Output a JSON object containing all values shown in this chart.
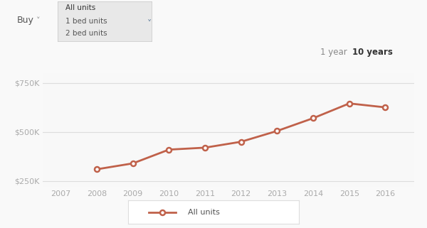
{
  "years": [
    2008,
    2009,
    2010,
    2011,
    2012,
    2013,
    2014,
    2015,
    2016
  ],
  "values": [
    310000,
    340000,
    410000,
    420000,
    450000,
    505000,
    570000,
    645000,
    625000
  ],
  "x_ticks": [
    2007,
    2008,
    2009,
    2010,
    2011,
    2012,
    2013,
    2014,
    2015,
    2016
  ],
  "y_ticks": [
    250000,
    500000,
    750000
  ],
  "y_tick_labels": [
    "$250K",
    "$500K",
    "$750K"
  ],
  "xlim": [
    2006.5,
    2016.8
  ],
  "ylim": [
    220000,
    800000
  ],
  "line_color": "#c0614a",
  "marker_face": "#ffffff",
  "marker_edge": "#c0614a",
  "bg_color": "#f8f8f8",
  "grid_color": "#dddddd",
  "legend_label": "All units",
  "dropdown_items": [
    "All units",
    "1 bed units",
    "2 bed units"
  ],
  "selected_item": "All units",
  "buy_label": "Buy",
  "period_labels": [
    "1 year",
    "10 years"
  ],
  "active_period": "1 year",
  "tick_label_color": "#aaaaaa",
  "font_color": "#555555"
}
